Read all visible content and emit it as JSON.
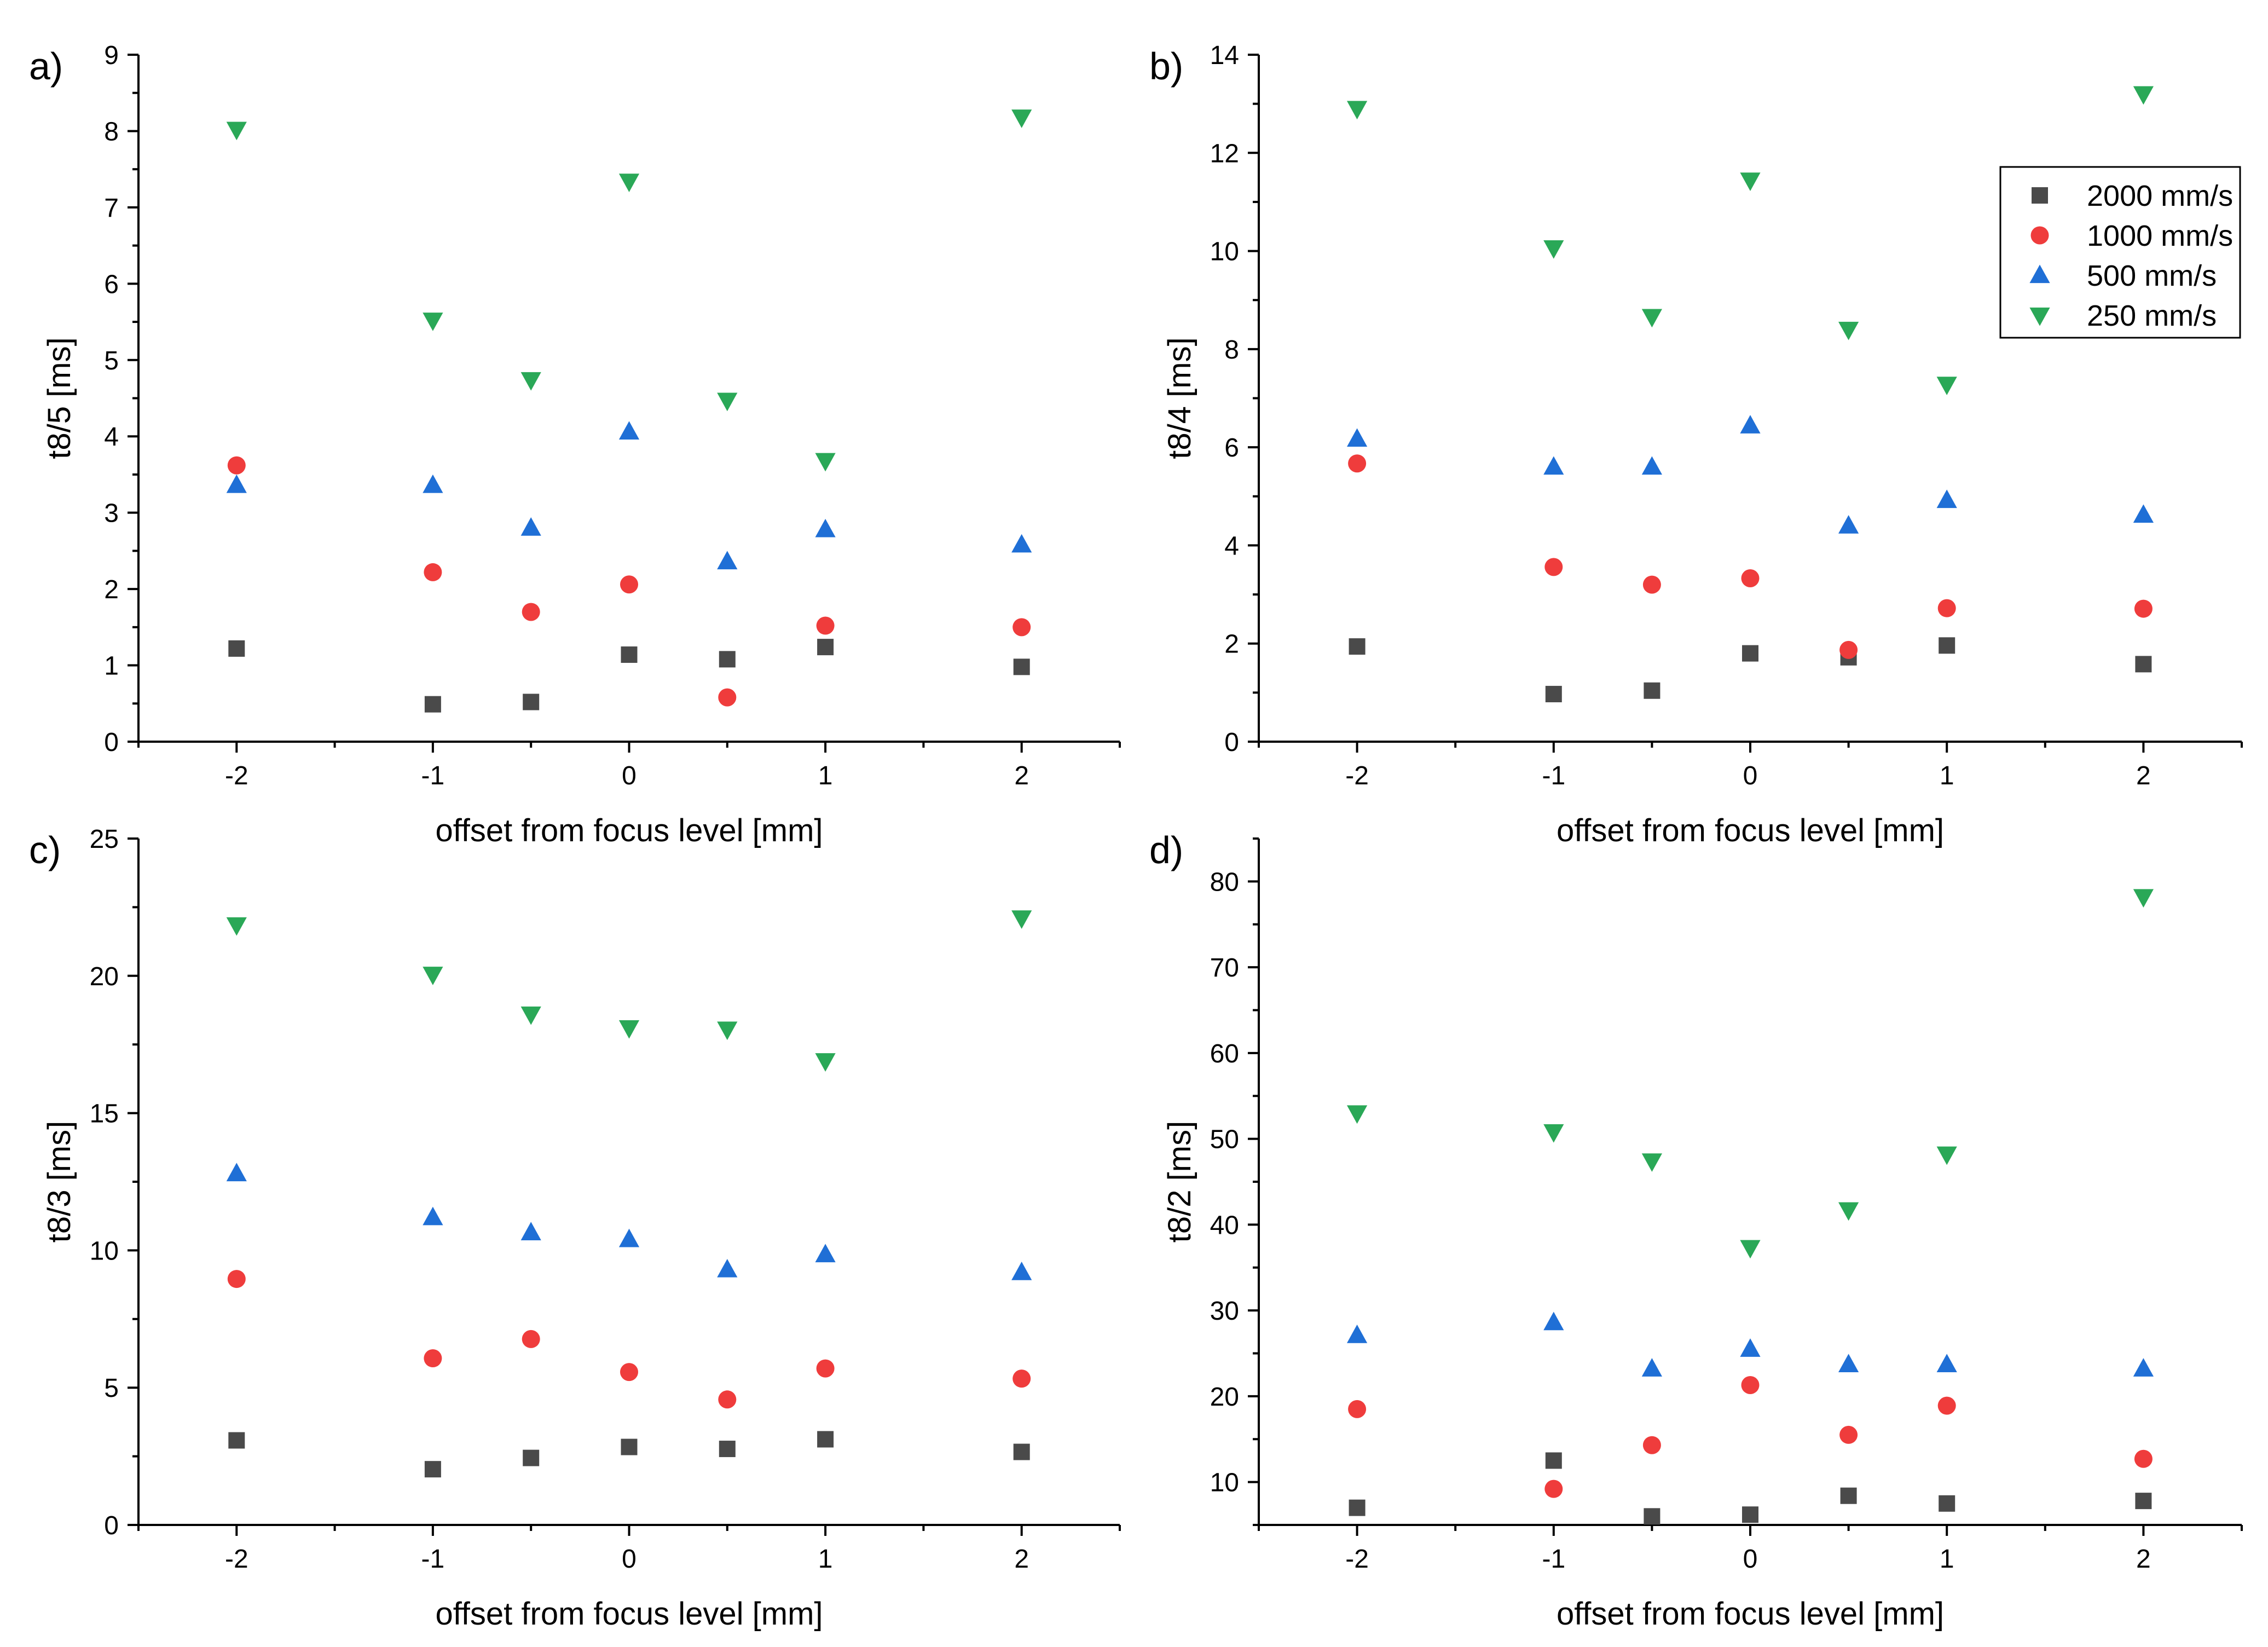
{
  "figure": {
    "xlabel": "offset from focus level [mm]"
  },
  "chart_data": [
    {
      "type": "scatter",
      "panel_label": "a)",
      "xlabel": "offset from focus level [mm]",
      "ylabel": "t8/5 [ms]",
      "xlim": [
        -2.5,
        2.5
      ],
      "ylim": [
        0,
        9
      ],
      "xticks": [
        -2,
        -1,
        0,
        1,
        2
      ],
      "yticks": [
        0,
        1,
        2,
        3,
        4,
        5,
        6,
        7,
        8,
        9
      ],
      "x": [
        -2,
        -1,
        -0.5,
        0,
        0.5,
        1,
        2
      ],
      "series": [
        {
          "name": "2000 mm/s",
          "values": [
            1.22,
            0.49,
            0.52,
            1.14,
            1.08,
            1.24,
            0.98
          ]
        },
        {
          "name": "1000 mm/s",
          "values": [
            3.62,
            2.22,
            1.7,
            2.06,
            0.58,
            1.52,
            1.5
          ]
        },
        {
          "name": "500 mm/s",
          "values": [
            3.36,
            3.36,
            2.8,
            4.06,
            2.36,
            2.78,
            2.58
          ]
        },
        {
          "name": "250 mm/s",
          "values": [
            8.02,
            5.52,
            4.74,
            7.34,
            4.47,
            3.68,
            8.18
          ]
        }
      ]
    },
    {
      "type": "scatter",
      "panel_label": "b)",
      "xlabel": "offset from focus level [mm]",
      "ylabel": "t8/4 [ms]",
      "xlim": [
        -2.5,
        2.5
      ],
      "ylim": [
        0,
        14
      ],
      "xticks": [
        -2,
        -1,
        0,
        1,
        2
      ],
      "yticks": [
        0,
        2,
        4,
        6,
        8,
        10,
        12,
        14
      ],
      "x": [
        -2,
        -1,
        -0.5,
        0,
        0.5,
        1,
        2
      ],
      "series": [
        {
          "name": "2000 mm/s",
          "values": [
            1.94,
            0.97,
            1.04,
            1.8,
            1.72,
            1.96,
            1.58
          ]
        },
        {
          "name": "1000 mm/s",
          "values": [
            5.67,
            3.56,
            3.2,
            3.33,
            1.87,
            2.72,
            2.71
          ]
        },
        {
          "name": "500 mm/s",
          "values": [
            6.17,
            5.6,
            5.6,
            6.44,
            4.4,
            4.92,
            4.62
          ]
        },
        {
          "name": "250 mm/s",
          "values": [
            12.9,
            10.06,
            8.66,
            11.44,
            8.4,
            7.28,
            13.2
          ]
        }
      ]
    },
    {
      "type": "scatter",
      "panel_label": "c)",
      "xlabel": "offset from focus level [mm]",
      "ylabel": "t8/3 [ms]",
      "xlim": [
        -2.5,
        2.5
      ],
      "ylim": [
        0,
        25
      ],
      "xticks": [
        -2,
        -1,
        0,
        1,
        2
      ],
      "yticks": [
        0,
        5,
        10,
        15,
        20,
        25
      ],
      "x": [
        -2,
        -1,
        -0.5,
        0,
        0.5,
        1,
        2
      ],
      "series": [
        {
          "name": "2000 mm/s",
          "values": [
            3.08,
            2.03,
            2.44,
            2.84,
            2.77,
            3.12,
            2.66
          ]
        },
        {
          "name": "1000 mm/s",
          "values": [
            8.96,
            6.07,
            6.77,
            5.57,
            4.57,
            5.7,
            5.33
          ]
        },
        {
          "name": "500 mm/s",
          "values": [
            12.8,
            11.2,
            10.65,
            10.4,
            9.3,
            9.85,
            9.2
          ]
        },
        {
          "name": "250 mm/s",
          "values": [
            21.85,
            20.05,
            18.6,
            18.1,
            18.05,
            16.9,
            22.1
          ]
        }
      ]
    },
    {
      "type": "scatter",
      "panel_label": "d)",
      "xlabel": "offset from focus level [mm]",
      "ylabel": "t8/2 [ms]",
      "xlim": [
        -2.5,
        2.5
      ],
      "ylim": [
        5,
        85
      ],
      "xticks": [
        -2,
        -1,
        0,
        1,
        2
      ],
      "yticks": [
        10,
        20,
        30,
        40,
        50,
        60,
        70,
        80
      ],
      "x": [
        -2,
        -1,
        -0.5,
        0,
        0.5,
        1,
        2
      ],
      "series": [
        {
          "name": "2000 mm/s",
          "values": [
            7.0,
            12.5,
            6.0,
            6.2,
            8.4,
            7.5,
            7.8
          ]
        },
        {
          "name": "1000 mm/s",
          "values": [
            18.5,
            9.2,
            14.3,
            21.3,
            15.5,
            18.9,
            12.7
          ]
        },
        {
          "name": "500 mm/s",
          "values": [
            27.1,
            28.6,
            23.2,
            25.5,
            23.7,
            23.7,
            23.2
          ]
        },
        {
          "name": "250 mm/s",
          "values": [
            53.0,
            50.8,
            47.4,
            37.3,
            41.7,
            48.2,
            78.2
          ]
        }
      ]
    }
  ],
  "legend": {
    "panel": "b)",
    "position": "top-right",
    "entries": [
      {
        "label": "2000 mm/s",
        "marker": "square",
        "color": "#4a4a4a"
      },
      {
        "label": "1000 mm/s",
        "marker": "circle",
        "color": "#ef3c3c"
      },
      {
        "label": "500 mm/s",
        "marker": "triangle-up",
        "color": "#1f6fd6"
      },
      {
        "label": "250 mm/s",
        "marker": "triangle-down",
        "color": "#2aa857"
      }
    ]
  }
}
